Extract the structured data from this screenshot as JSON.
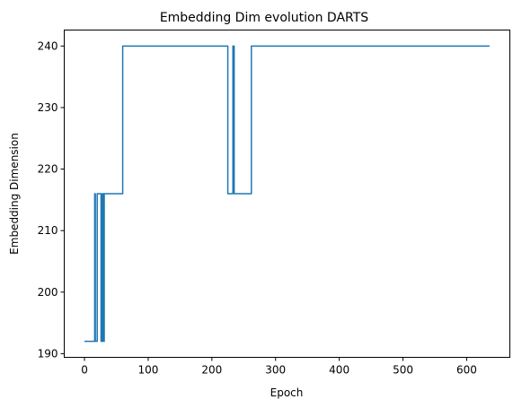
{
  "chart_data": {
    "type": "line",
    "title": "Embedding Dim evolution DARTS",
    "xlabel": "Epoch",
    "ylabel": "Embedding Dimension",
    "xlim": [
      -31.8,
      667.8
    ],
    "ylim": [
      189.4,
      242.6
    ],
    "xticks": [
      0,
      100,
      200,
      300,
      400,
      500,
      600
    ],
    "yticks": [
      190,
      200,
      210,
      220,
      230,
      240
    ],
    "grid": false,
    "line_color": "#1f77b4",
    "series": [
      {
        "x": [
          0,
          16,
          16,
          17,
          17,
          19,
          19,
          20,
          20,
          22,
          22,
          26,
          26,
          28,
          28,
          30,
          30,
          31,
          31,
          60,
          60,
          225,
          225,
          233,
          233,
          234,
          234,
          235,
          235,
          236,
          236,
          262,
          262,
          636
        ],
        "y": [
          192,
          192,
          216,
          216,
          192,
          192,
          192,
          192,
          216,
          216,
          216,
          216,
          192,
          192,
          216,
          216,
          192,
          192,
          216,
          216,
          240,
          240,
          216,
          216,
          240,
          240,
          240,
          240,
          216,
          216,
          216,
          216,
          240,
          240
        ]
      }
    ]
  }
}
